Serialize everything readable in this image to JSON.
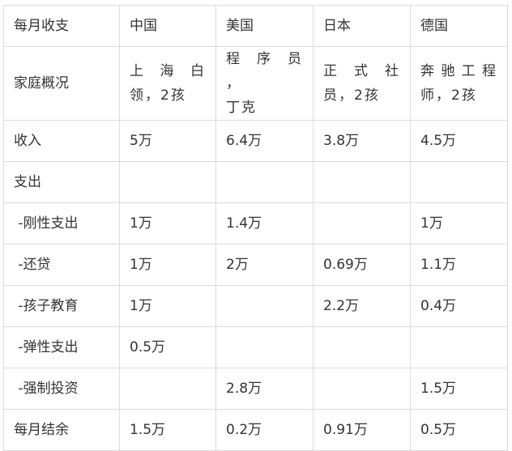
{
  "headers": [
    "每月收支",
    "中国",
    "美国",
    "日本",
    "德国"
  ],
  "profile": {
    "label": "家庭概况",
    "cells": [
      [
        "上 海 白",
        "领，2孩"
      ],
      [
        "程 序 员 ，",
        "丁克"
      ],
      [
        "正 式 社",
        "员，2孩"
      ],
      [
        "奔驰工程",
        "师，2孩"
      ]
    ]
  },
  "rows": [
    {
      "label": "收入",
      "cells": [
        "5万",
        "6.4万",
        "3.8万",
        "4.5万"
      ]
    },
    {
      "label": "支出",
      "cells": [
        "",
        "",
        "",
        ""
      ]
    },
    {
      "label": " -刚性支出",
      "cells": [
        "1万",
        "1.4万",
        "",
        "1万"
      ]
    },
    {
      "label": " -还贷",
      "cells": [
        "1万",
        "2万",
        "0.69万",
        "1.1万"
      ]
    },
    {
      "label": " -孩子教育",
      "cells": [
        "1万",
        "",
        "2.2万",
        "0.4万"
      ]
    },
    {
      "label": " -弹性支出",
      "cells": [
        "0.5万",
        "",
        "",
        ""
      ]
    },
    {
      "label": " -强制投资",
      "cells": [
        "",
        "2.8万",
        "",
        "1.5万"
      ]
    },
    {
      "label": "每月结余",
      "cells": [
        "1.5万",
        "0.2万",
        "0.91万",
        "0.5万"
      ]
    }
  ]
}
